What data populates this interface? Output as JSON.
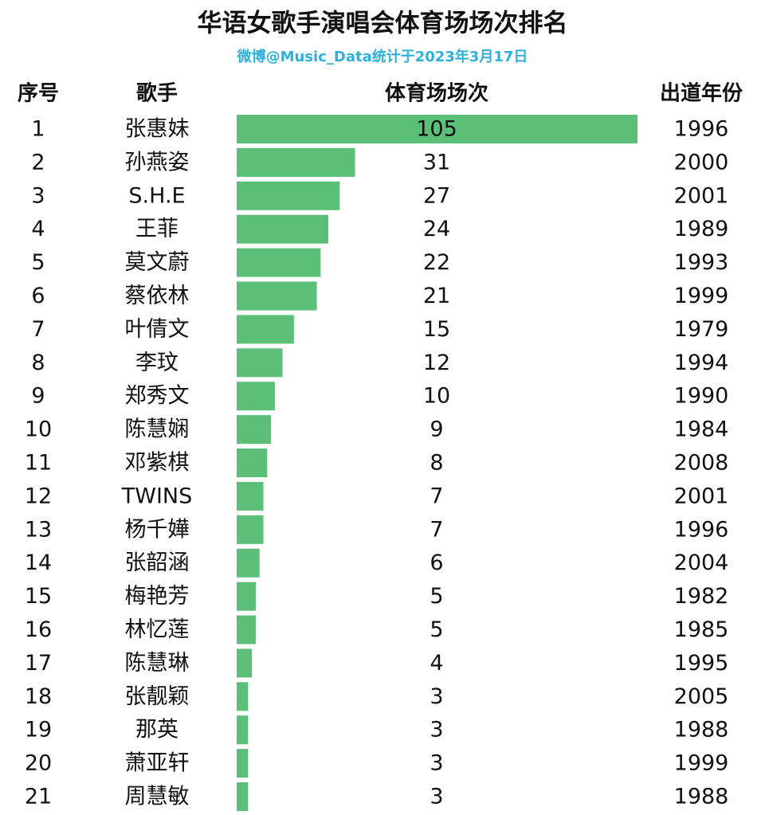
{
  "title": "华语女歌手演唱会体育场场次排名",
  "subtitle": "微博@Music_Data统计于2023年3月17日",
  "columns": [
    "序号",
    "歌手",
    "体育场场次",
    "出道年份"
  ],
  "bar_color": "#5cbf77",
  "rows": [
    [
      1,
      "张惠妹",
      105,
      1996
    ],
    [
      2,
      "孙燕姿",
      31,
      2000
    ],
    [
      3,
      "S.H.E",
      27,
      2001
    ],
    [
      4,
      "王菲",
      24,
      1989
    ],
    [
      5,
      "莫文蔚",
      22,
      1993
    ],
    [
      6,
      "蔡依林",
      21,
      1999
    ],
    [
      7,
      "叶倩文",
      15,
      1979
    ],
    [
      8,
      "李玟",
      12,
      1994
    ],
    [
      9,
      "郑秀文",
      10,
      1990
    ],
    [
      10,
      "陈慧娴",
      9,
      1984
    ],
    [
      11,
      "邓紫棋",
      8,
      2008
    ],
    [
      12,
      "TWINS",
      7,
      2001
    ],
    [
      13,
      "杨千嬅",
      7,
      1996
    ],
    [
      14,
      "张韶涵",
      6,
      2004
    ],
    [
      15,
      "梅艳芳",
      5,
      1982
    ],
    [
      16,
      "林忆莲",
      5,
      1985
    ],
    [
      17,
      "陈慧琳",
      4,
      1995
    ],
    [
      18,
      "张靓颖",
      3,
      2005
    ],
    [
      19,
      "那英",
      3,
      1988
    ],
    [
      20,
      "萧亚轩",
      3,
      1999
    ],
    [
      21,
      "周慧敏",
      3,
      1988
    ]
  ]
}
